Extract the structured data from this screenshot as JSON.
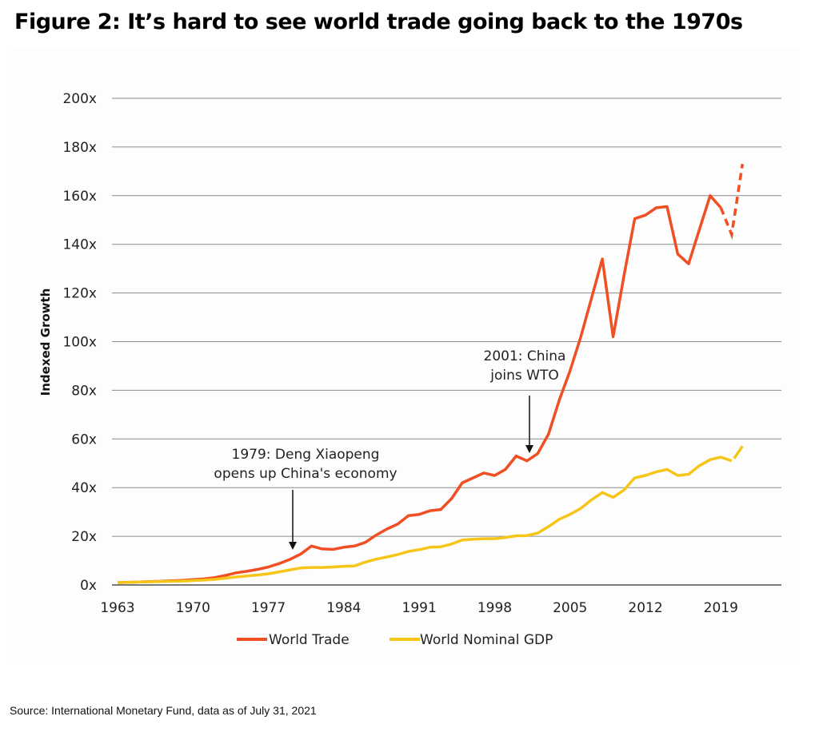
{
  "title": "Figure 2: It’s hard to see world trade going back to the 1970s",
  "source": "Source: International Monetary Fund, data as of July 31, 2021",
  "colors": {
    "trade": "#f04e23",
    "gdp": "#f5c518",
    "grid": "#8c8c8c",
    "axis": "#7a7a7a",
    "arrow": "#111111"
  },
  "chart_data": {
    "type": "line",
    "title": "Figure 2: It’s hard to see world trade going back to the 1970s",
    "xlabel": "",
    "ylabel": "Indexed Growth",
    "xlim": [
      1963,
      2024
    ],
    "ylim": [
      0,
      200
    ],
    "grid": true,
    "legend_position": "bottom-center",
    "x_ticks": [
      1963,
      1970,
      1977,
      1984,
      1991,
      1998,
      2005,
      2012,
      2019
    ],
    "x_tick_labels": [
      "1963",
      "1970",
      "1977",
      "1984",
      "1991",
      "1998",
      "2005",
      "2012",
      "2019"
    ],
    "y_ticks": [
      0,
      20,
      40,
      60,
      80,
      100,
      120,
      140,
      160,
      180,
      200
    ],
    "y_tick_labels": [
      "0x",
      "20x",
      "40x",
      "60x",
      "80x",
      "100x",
      "120x",
      "140x",
      "160x",
      "180x",
      "200x"
    ],
    "x": [
      1963,
      1964,
      1965,
      1966,
      1967,
      1968,
      1969,
      1970,
      1971,
      1972,
      1973,
      1974,
      1975,
      1976,
      1977,
      1978,
      1979,
      1980,
      1981,
      1982,
      1983,
      1984,
      1985,
      1986,
      1987,
      1988,
      1989,
      1990,
      1991,
      1992,
      1993,
      1994,
      1995,
      1996,
      1997,
      1998,
      1999,
      2000,
      2001,
      2002,
      2003,
      2004,
      2005,
      2006,
      2007,
      2008,
      2009,
      2010,
      2011,
      2012,
      2013,
      2014,
      2015,
      2016,
      2017,
      2018,
      2019,
      2020,
      2021
    ],
    "series": [
      {
        "name": "World Trade",
        "color": "#f04e23",
        "values": [
          1.0,
          1.1,
          1.2,
          1.4,
          1.5,
          1.7,
          1.9,
          2.2,
          2.5,
          3.0,
          3.9,
          5.0,
          5.6,
          6.4,
          7.4,
          8.8,
          10.5,
          12.7,
          16.0,
          14.8,
          14.6,
          15.5,
          16.0,
          17.5,
          20.5,
          23.0,
          25.0,
          28.5,
          29.0,
          30.5,
          31.0,
          35.5,
          42.0,
          44.0,
          46.0,
          45.0,
          47.5,
          53.0,
          51.0,
          54.0,
          62.0,
          76.0,
          88.0,
          102.0,
          118.0,
          134.0,
          102.0,
          127.0,
          150.5,
          152.0,
          155.0,
          155.5,
          136.0,
          132.0,
          146.0,
          160.0,
          155.0,
          144.0,
          173.0
        ],
        "dashed_from": 2019
      },
      {
        "name": "World Nominal GDP",
        "color": "#f5c518",
        "values": [
          1.0,
          1.1,
          1.2,
          1.3,
          1.4,
          1.5,
          1.6,
          1.8,
          2.0,
          2.3,
          2.8,
          3.3,
          3.7,
          4.1,
          4.6,
          5.4,
          6.2,
          7.0,
          7.2,
          7.2,
          7.4,
          7.7,
          7.8,
          9.4,
          10.6,
          11.5,
          12.5,
          13.8,
          14.5,
          15.5,
          15.7,
          16.8,
          18.5,
          18.8,
          19.0,
          19.0,
          19.5,
          20.2,
          20.3,
          21.3,
          24.0,
          27.0,
          29.0,
          31.5,
          35.0,
          38.0,
          36.0,
          39.0,
          44.0,
          45.0,
          46.5,
          47.5,
          45.0,
          45.5,
          49.0,
          51.5,
          52.5,
          51.0,
          57.0
        ],
        "break_after": 2020
      }
    ],
    "annotations": [
      {
        "lines": [
          "1979: Deng Xiaopeng",
          "opens up China's economy"
        ],
        "x": 1979,
        "arrow_to_value": 13
      },
      {
        "lines": [
          "2001: China",
          "joins WTO"
        ],
        "x": 2001,
        "arrow_to_value": 54
      }
    ],
    "legend": [
      "World Trade",
      "World Nominal GDP"
    ]
  }
}
